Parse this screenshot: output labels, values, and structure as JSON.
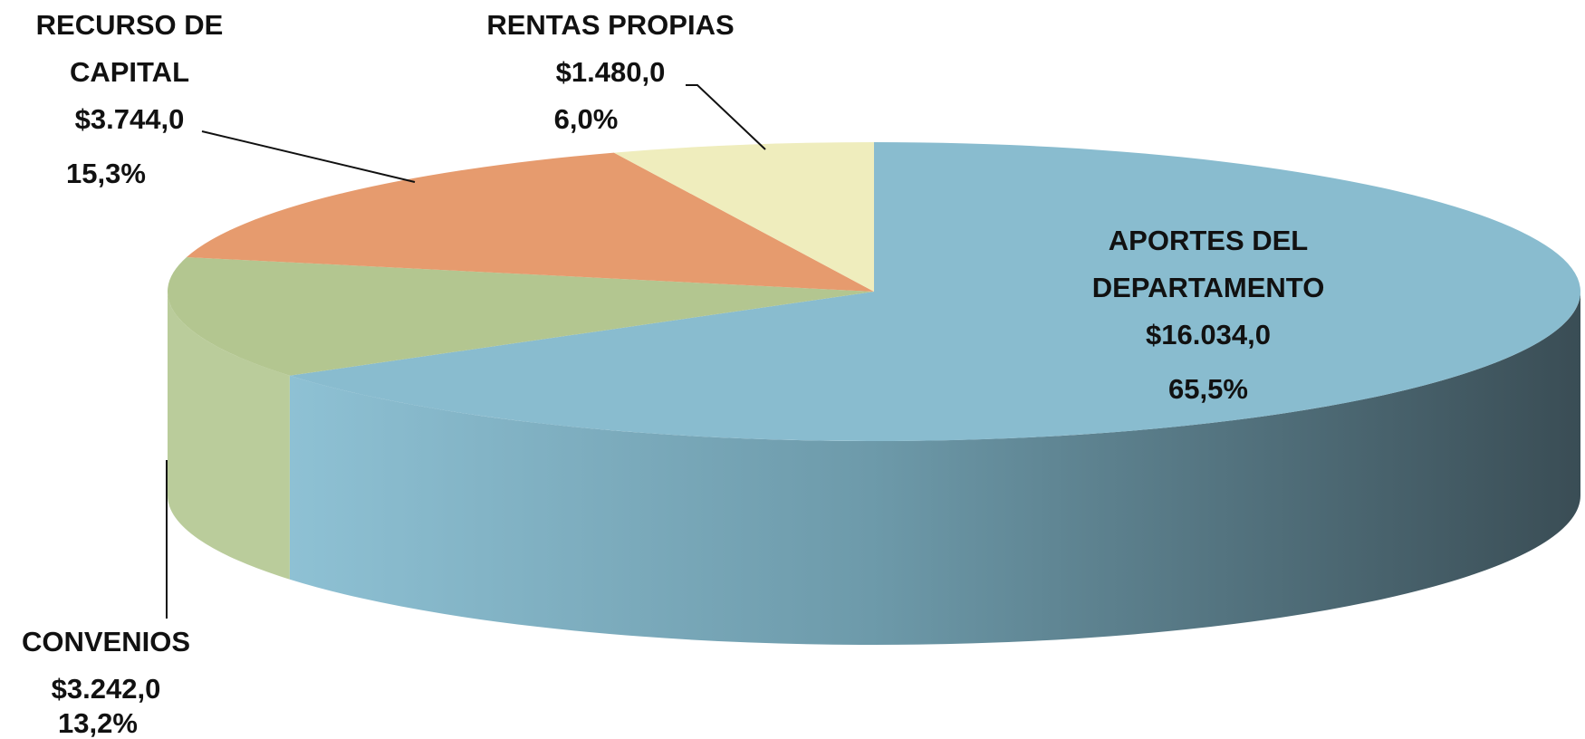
{
  "chart_data": {
    "type": "pie3d",
    "categories": [
      "APORTES DEL DEPARTAMENTO",
      "CONVENIOS",
      "RECURSO DE CAPITAL",
      "RENTAS PROPIAS"
    ],
    "values": [
      65.5,
      13.2,
      15.3,
      6.0
    ],
    "value_labels": [
      "65,5%",
      "13,2%",
      "15,3%",
      "6,0%"
    ],
    "amounts": [
      16034,
      3242,
      3744,
      1480
    ],
    "amount_labels": [
      "$16.034,0",
      "$3.242,0",
      "$3.744,0",
      "$1.480,0"
    ],
    "colors": [
      "#89bccf",
      "#b3c690",
      "#e69b6e",
      "#efedbd"
    ]
  }
}
